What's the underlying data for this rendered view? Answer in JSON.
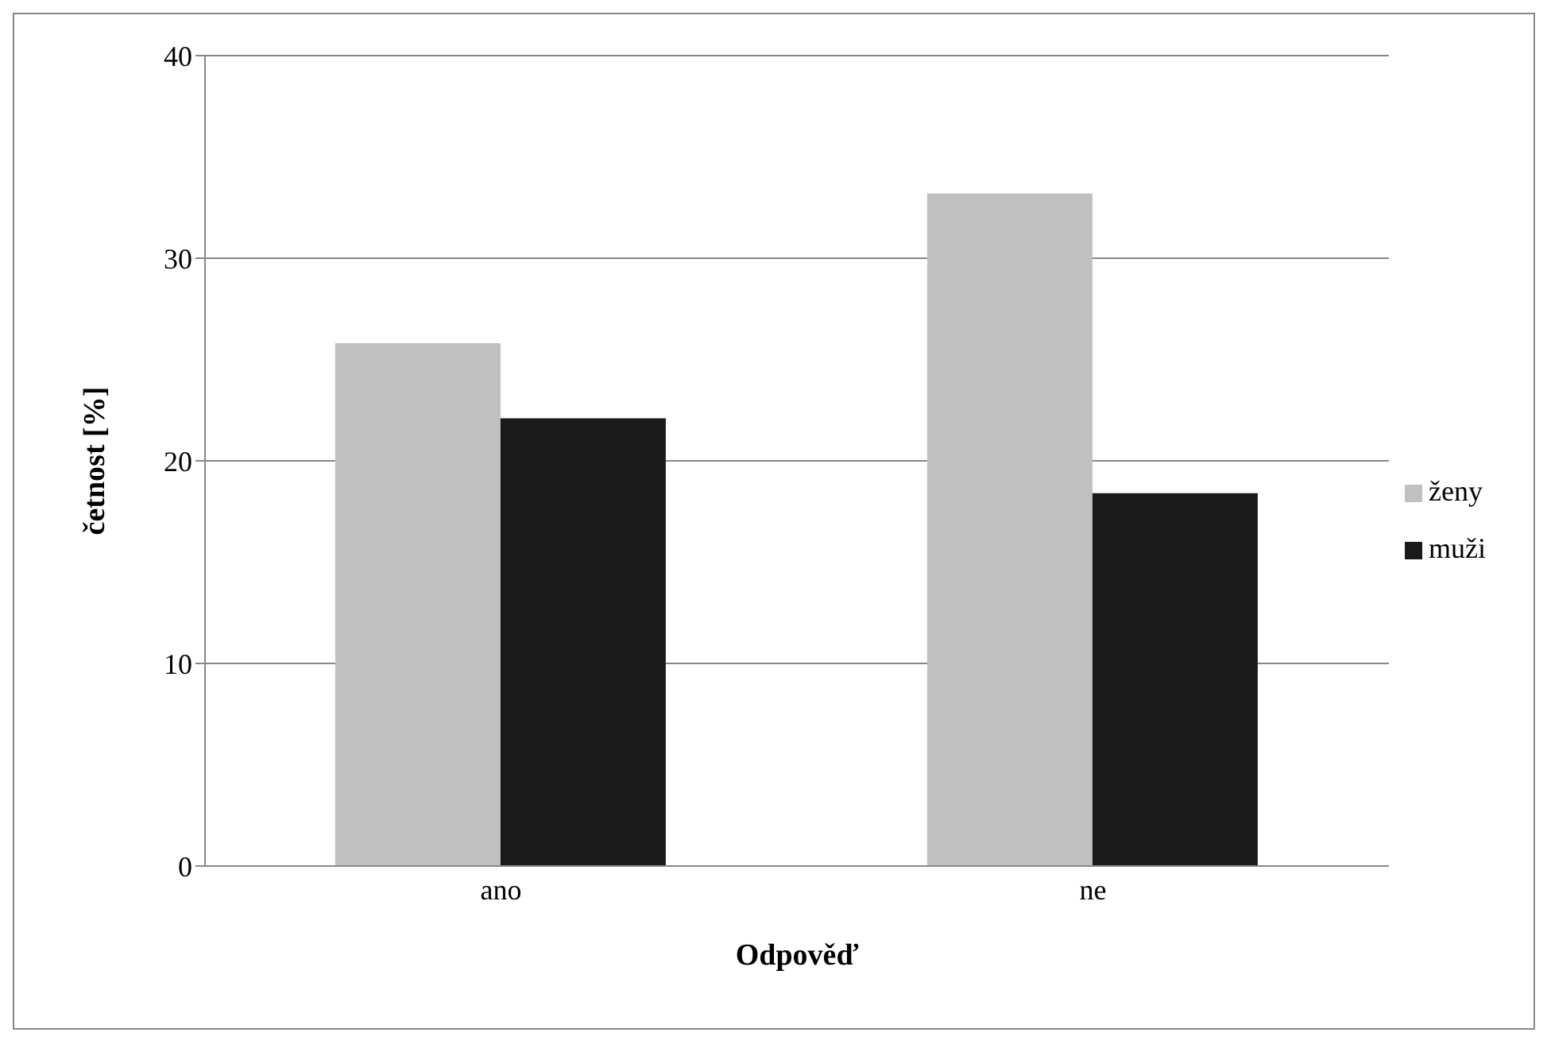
{
  "chart_data": {
    "type": "bar",
    "xlabel": "Odpověď",
    "ylabel": "četnost [%]",
    "categories": [
      "ano",
      "ne"
    ],
    "series": [
      {
        "name": "ženy",
        "color": "#c0c0c0",
        "values": [
          25.8,
          33.2
        ]
      },
      {
        "name": "muži",
        "color": "#1a1a1a",
        "values": [
          22.1,
          18.4
        ]
      }
    ],
    "ylim": [
      0,
      40
    ],
    "yticks": [
      0,
      10,
      20,
      30,
      40
    ],
    "grid": "y",
    "legend": "right"
  }
}
